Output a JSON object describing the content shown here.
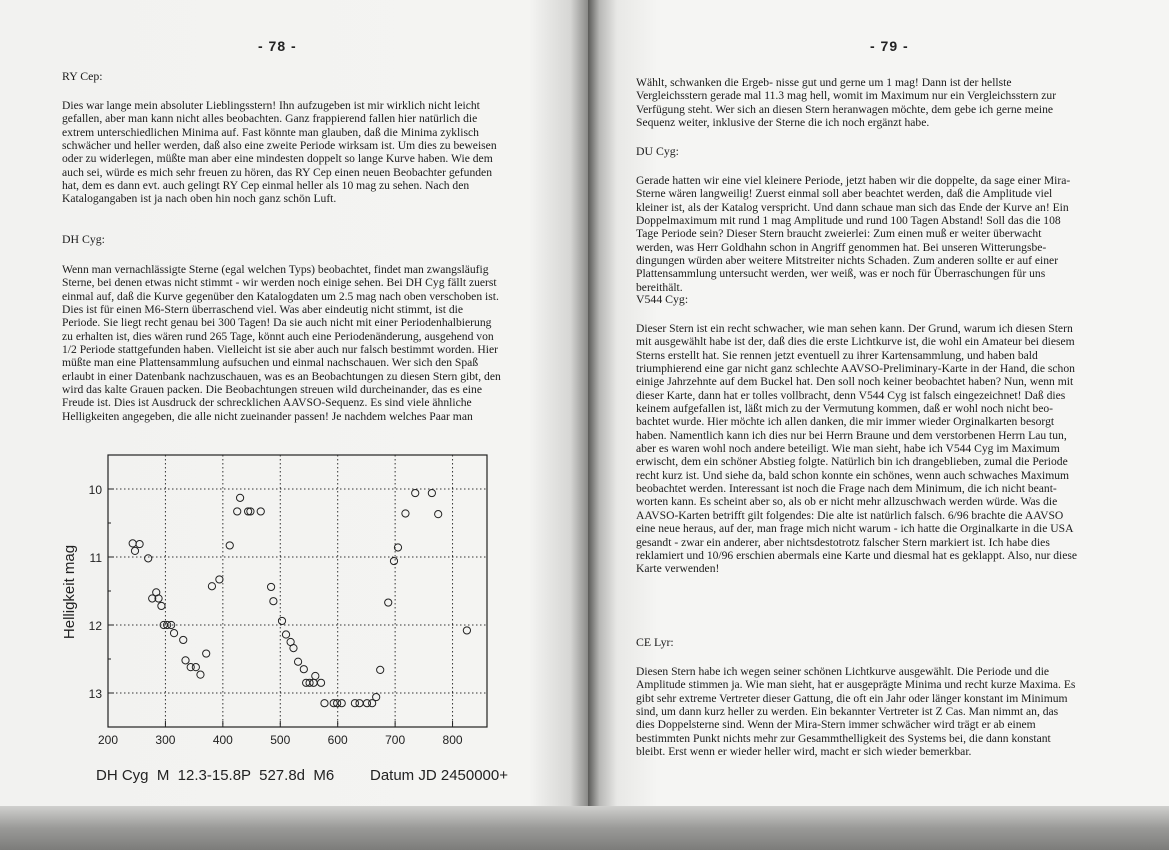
{
  "left_page": {
    "page_number": "- 78 -",
    "sections": [
      {
        "heading": "RY Cep:",
        "lines": [
          "Dies war lange mein absoluter Lieblingsstern! Ihn aufzugeben ist mir wirklich nicht leicht",
          "gefallen, aber man kann nicht alles beobachten. Ganz frappierend fallen hier natürlich die",
          "extrem unterschiedlichen Minima auf. Fast könnte man glauben, daß die Minima zyklisch",
          "schwächer und heller werden, daß also eine zweite Periode wirksam ist. Um dies zu beweisen",
          "oder zu widerlegen, müßte man aber eine mindesten doppelt so lange Kurve haben. Wie dem",
          "auch sei, würde es mich sehr freuen zu hören, das RY Cep einen neuen Beobachter gefunden",
          "hat, dem es dann evt. auch gelingt RY Cep einmal heller als 10 mag zu sehen. Nach den",
          "Katalogangaben ist ja nach oben hin noch ganz schön Luft."
        ]
      },
      {
        "heading": "DH Cyg:",
        "lines": [
          "Wenn man vernachlässigte Sterne (egal welchen Typs) beobachtet, findet man zwangsläufig",
          "Sterne, bei denen etwas nicht stimmt - wir werden noch einige sehen. Bei DH Cyg fällt zuerst",
          "einmal auf, daß die Kurve gegenüber den Katalogdaten um 2.5 mag nach oben verschoben ist.",
          "Dies ist für einen M6-Stern überraschend viel. Was aber eindeutig nicht stimmt, ist die",
          "Periode. Sie liegt recht genau bei 300 Tagen! Da sie auch nicht mit einer Periodenhalbierung",
          "zu erhalten ist, dies wären rund 265 Tage, könnt auch eine Periodenänderung, ausgehend von",
          "1/2 Periode stattgefunden haben. Vielleicht ist sie aber auch nur falsch bestimmt worden. Hier",
          "müßte man eine Plattensammlung aufsuchen und einmal nachschauen. Wer sich den Spaß",
          "erlaubt in einer Datenbank nachzuschauen, was es an Beobachtungen zu diesen Stern gibt, den",
          "wird das kalte Grauen packen. Die Beobachtungen streuen wild durcheinander, das es eine",
          "Freude ist. Dies ist Ausdruck der schrecklichen AAVSO-Sequenz. Es sind viele ähnliche",
          "Helligkeiten angegeben, die alle nicht zueinander passen! Je nachdem welches Paar man"
        ]
      }
    ]
  },
  "right_page": {
    "page_number": "- 79 -",
    "sections": [
      {
        "heading": "",
        "lines": [
          "Wählt, schwanken die Ergeb- nisse gut und gerne um 1 mag! Dann ist der hellste",
          "Vergleichsstern gerade mal 11.3 mag hell, womit im Maximum nur ein Vergleichsstern zur",
          "Verfügung steht. Wer sich an diesen Stern heranwagen möchte, dem gebe ich gerne meine",
          "Sequenz weiter, inklusive der Sterne die ich noch ergänzt habe."
        ]
      },
      {
        "heading": "DU Cyg:",
        "lines": [
          "Gerade hatten wir eine viel kleinere Periode, jetzt haben wir die doppelte, da sage einer Mira-",
          "Sterne wären langweilig! Zuerst einmal soll aber beachtet werden, daß die Amplitude viel",
          "kleiner ist, als der Katalog verspricht. Und dann schaue man sich das Ende der Kurve an! Ein",
          "Doppelmaximum mit rund 1 mag Amplitude und rund 100 Tagen Abstand! Soll das die 108",
          "Tage Periode sein? Dieser Stern braucht zweierlei: Zum einen muß er weiter überwacht",
          "werden, was Herr Goldhahn schon in Angriff genommen hat. Bei unseren Witterungsbe-",
          "dingungen würden aber weitere Mitstreiter nichts Schaden. Zum anderen sollte er auf einer",
          "Plattensammlung untersucht werden, wer weiß, was er noch für Überraschungen für uns",
          "bereithält."
        ]
      },
      {
        "heading": "V544 Cyg:",
        "lines": [
          "Dieser Stern ist ein recht schwacher, wie man sehen kann. Der Grund, warum ich diesen Stern",
          "mit ausgewählt habe ist der, daß dies die erste Lichtkurve ist, die wohl ein Amateur bei diesem",
          "Sterns erstellt hat. Sie rennen jetzt eventuell zu ihrer Kartensammlung, und haben bald",
          "triumphierend eine gar nicht ganz schlechte AAVSO-Preliminary-Karte in der Hand, die schon",
          "einige Jahrzehnte auf dem Buckel hat. Den soll noch keiner beobachtet haben? Nun, wenn mit",
          "dieser Karte, dann hat er tolles vollbracht, denn V544 Cyg ist falsch eingezeichnet! Daß dies",
          "keinem aufgefallen ist, läßt mich zu der Vermutung kommen, daß er wohl noch nicht beo-",
          "bachtet wurde. Hier möchte ich allen danken, die mir immer wieder Orginalkarten besorgt",
          "haben. Namentlich kann ich dies nur bei Herrn Braune und dem verstorbenen Herrn Lau tun,",
          "aber es waren wohl noch andere beteiligt. Wie man sieht, habe ich V544 Cyg im Maximum",
          "erwischt, dem ein schöner Abstieg folgte. Natürlich bin ich drangeblieben, zumal die Periode",
          "recht kurz ist. Und siehe da, bald schon konnte ein schönes, wenn auch schwaches Maximum",
          "beobachtet werden. Interessant ist noch die Frage nach dem Minimum, die ich nicht beant-",
          "worten kann. Es scheint aber so, als ob er nicht mehr allzuschwach werden würde. Was die",
          "AAVSO-Karten betrifft gilt folgendes: Die alte ist natürlich falsch. 6/96 brachte die AAVSO",
          "eine neue heraus, auf der, man frage mich nicht warum - ich hatte die Orginalkarte in die USA",
          "gesandt - zwar ein anderer, aber nichtsdestotrotz falscher Stern markiert ist. Ich habe dies",
          "reklamiert und 10/96 erschien abermals eine Karte und diesmal hat es geklappt. Also, nur diese",
          "Karte verwenden!"
        ]
      },
      {
        "heading": "CE Lyr:",
        "lines": [
          "Diesen Stern habe ich wegen seiner schönen Lichtkurve ausgewählt. Die Periode und die",
          "Amplitude stimmen ja. Wie man sieht, hat er ausgeprägte Minima und recht kurze Maxima. Es",
          "gibt sehr extreme Vertreter dieser Gattung, die oft ein Jahr oder länger konstant im Minimum",
          "sind, um dann kurz heller zu werden. Ein bekannter Vertreter ist  Z Cas. Man nimmt an, das",
          "dies Doppelsterne sind. Wenn der Mira-Stern immer schwächer wird trägt er ab einem",
          "bestimmten Punkt nichts mehr zur Gesammthelligkeit des Systems bei, die dann konstant",
          "bleibt. Erst wenn er wieder heller wird, macht er sich wieder bemerkbar."
        ]
      }
    ]
  },
  "chart_data": {
    "type": "scatter",
    "title": "",
    "caption_left": "DH Cyg  M  12.3-15.8P  527.8d  M6",
    "xlabel": "Datum JD 2450000+",
    "ylabel": "Helligkeit mag",
    "xlim": [
      200,
      860
    ],
    "ylim": [
      13.5,
      9.5
    ],
    "y_inverted": true,
    "grid": "dotted",
    "marker": "open-circle",
    "x_ticks": [
      "200",
      "300",
      "400",
      "500",
      "600",
      "700",
      "800"
    ],
    "y_ticks": [
      "10",
      "11",
      "12",
      "13"
    ],
    "points": [
      [
        243,
        10.8
      ],
      [
        247,
        10.91
      ],
      [
        255,
        10.81
      ],
      [
        270,
        11.02
      ],
      [
        277,
        11.61
      ],
      [
        284,
        11.52
      ],
      [
        288,
        11.61
      ],
      [
        293,
        11.72
      ],
      [
        297,
        12.0
      ],
      [
        303,
        12.0
      ],
      [
        310,
        12.0
      ],
      [
        315,
        12.12
      ],
      [
        331,
        12.22
      ],
      [
        335,
        12.52
      ],
      [
        344,
        12.62
      ],
      [
        353,
        12.62
      ],
      [
        361,
        12.73
      ],
      [
        371,
        12.42
      ],
      [
        381,
        11.43
      ],
      [
        394,
        11.33
      ],
      [
        412,
        10.83
      ],
      [
        425,
        10.33
      ],
      [
        430,
        10.13
      ],
      [
        444,
        10.33
      ],
      [
        448,
        10.33
      ],
      [
        466,
        10.33
      ],
      [
        484,
        11.44
      ],
      [
        488,
        11.65
      ],
      [
        503,
        11.94
      ],
      [
        510,
        12.14
      ],
      [
        518,
        12.25
      ],
      [
        523,
        12.34
      ],
      [
        531,
        12.54
      ],
      [
        541,
        12.65
      ],
      [
        545,
        12.85
      ],
      [
        551,
        12.85
      ],
      [
        558,
        12.85
      ],
      [
        561,
        12.75
      ],
      [
        571,
        12.85
      ],
      [
        577,
        13.15
      ],
      [
        593,
        13.15
      ],
      [
        599,
        13.15
      ],
      [
        607,
        13.15
      ],
      [
        630,
        13.15
      ],
      [
        638,
        13.15
      ],
      [
        651,
        13.15
      ],
      [
        660,
        13.15
      ],
      [
        667,
        13.06
      ],
      [
        674,
        12.66
      ],
      [
        688,
        11.67
      ],
      [
        698,
        11.06
      ],
      [
        705,
        10.86
      ],
      [
        718,
        10.36
      ],
      [
        735,
        10.06
      ],
      [
        764,
        10.06
      ],
      [
        775,
        10.37
      ],
      [
        825,
        12.08
      ]
    ]
  }
}
